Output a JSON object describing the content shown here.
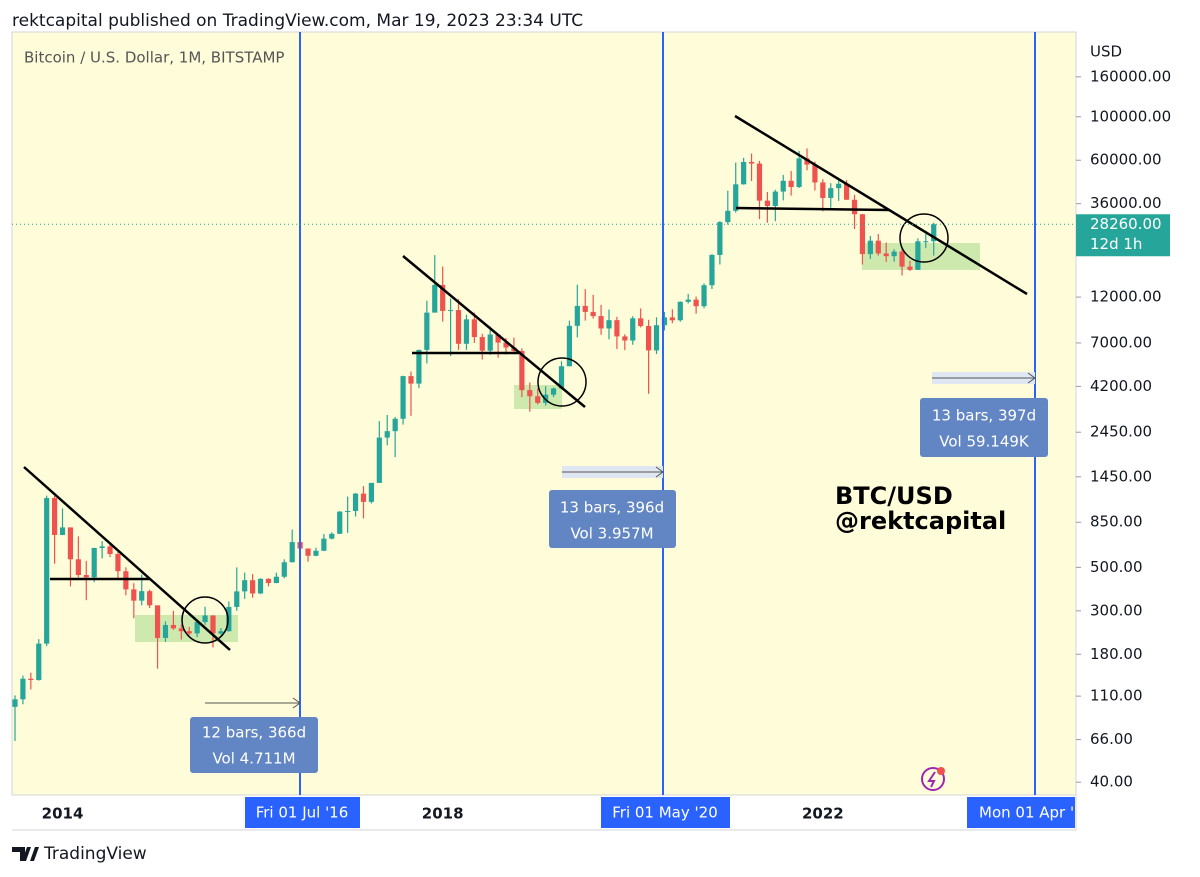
{
  "header": {
    "title": "rektcapital published on TradingView.com, Mar 19, 2023 23:34 UTC"
  },
  "chart": {
    "type": "candlestick",
    "symbol": "Bitcoin / U.S. Dollar, 1M, BITSTAMP",
    "currency": "USD",
    "log_scale": true,
    "colors": {
      "up": "#26a69a",
      "down": "#ef5350"
    },
    "ylim": [
      34.4,
      271000
    ],
    "yticks": [
      {
        "value": 160000,
        "label": "160000.00"
      },
      {
        "value": 100000,
        "label": "100000.00"
      },
      {
        "value": 60000,
        "label": "60000.00"
      },
      {
        "value": 36000,
        "label": "36000.00"
      },
      {
        "value": 12000,
        "label": "12000.00"
      },
      {
        "value": 7000,
        "label": "7000.00"
      },
      {
        "value": 4200,
        "label": "4200.00"
      },
      {
        "value": 2450,
        "label": "2450.00"
      },
      {
        "value": 1450,
        "label": "1450.00"
      },
      {
        "value": 850,
        "label": "850.00"
      },
      {
        "value": 500,
        "label": "500.00"
      },
      {
        "value": 300,
        "label": "300.00"
      },
      {
        "value": 180,
        "label": "180.00"
      },
      {
        "value": 110,
        "label": "110.00"
      },
      {
        "value": 66,
        "label": "66.00"
      },
      {
        "value": 40,
        "label": "40.00"
      }
    ],
    "x_labels": [
      "2014",
      "2018",
      "2022"
    ],
    "last_price": {
      "value": 28260,
      "label": "28260.00",
      "countdown": "12d 1h"
    },
    "candles": [
      [
        97,
        111,
        65,
        106
      ],
      [
        106,
        140,
        100,
        135
      ],
      [
        135,
        145,
        119,
        133
      ],
      [
        133,
        215,
        132,
        204
      ],
      [
        204,
        1163,
        198,
        1130
      ],
      [
        1130,
        1160,
        522,
        732
      ],
      [
        732,
        1000,
        730,
        800
      ],
      [
        800,
        800,
        400,
        550
      ],
      [
        550,
        720,
        445,
        457
      ],
      [
        457,
        540,
        340,
        445
      ],
      [
        445,
        630,
        420,
        628
      ],
      [
        628,
        680,
        555,
        640
      ],
      [
        640,
        660,
        565,
        585
      ],
      [
        585,
        600,
        440,
        478
      ],
      [
        478,
        500,
        360,
        386
      ],
      [
        386,
        415,
        275,
        338
      ],
      [
        338,
        460,
        320,
        378
      ],
      [
        378,
        385,
        310,
        320
      ],
      [
        320,
        320,
        152,
        218
      ],
      [
        218,
        265,
        208,
        254
      ],
      [
        254,
        300,
        240,
        244
      ],
      [
        244,
        255,
        214,
        236
      ],
      [
        236,
        248,
        225,
        230
      ],
      [
        230,
        268,
        220,
        263
      ],
      [
        263,
        315,
        255,
        284
      ],
      [
        284,
        285,
        195,
        230
      ],
      [
        230,
        245,
        225,
        236
      ],
      [
        236,
        335,
        235,
        314
      ],
      [
        314,
        500,
        300,
        377
      ],
      [
        377,
        470,
        345,
        430
      ],
      [
        430,
        462,
        350,
        368
      ],
      [
        368,
        440,
        365,
        437
      ],
      [
        437,
        440,
        400,
        416
      ],
      [
        416,
        470,
        415,
        448
      ],
      [
        448,
        550,
        440,
        531
      ],
      [
        531,
        780,
        530,
        673
      ],
      [
        673,
        700,
        470,
        624
      ],
      [
        624,
        625,
        535,
        573
      ],
      [
        573,
        630,
        570,
        608
      ],
      [
        608,
        740,
        605,
        701
      ],
      [
        701,
        755,
        695,
        742
      ],
      [
        742,
        970,
        740,
        963
      ],
      [
        963,
        1150,
        750,
        970
      ],
      [
        970,
        1200,
        910,
        1190
      ],
      [
        1190,
        1300,
        890,
        1080
      ],
      [
        1080,
        1350,
        1060,
        1350
      ],
      [
        1350,
        2790,
        1350,
        2300
      ],
      [
        2300,
        3000,
        2100,
        2480
      ],
      [
        2480,
        2930,
        1830,
        2870
      ],
      [
        2870,
        4760,
        2680,
        4740
      ],
      [
        4740,
        5000,
        2970,
        4340
      ],
      [
        4340,
        6470,
        4110,
        6450
      ],
      [
        6450,
        11500,
        5500,
        10000
      ],
      [
        10000,
        19666,
        10000,
        13850
      ],
      [
        13850,
        17180,
        9000,
        10200
      ],
      [
        10200,
        11800,
        6000,
        10300
      ],
      [
        10300,
        11700,
        6450,
        6930
      ],
      [
        6930,
        9760,
        6450,
        9240
      ],
      [
        9240,
        10000,
        7000,
        7500
      ],
      [
        7500,
        7790,
        5760,
        6390
      ],
      [
        6390,
        8500,
        6080,
        7730
      ],
      [
        7730,
        7760,
        5880,
        7030
      ],
      [
        7030,
        7410,
        6100,
        6630
      ],
      [
        6630,
        7450,
        6200,
        6370
      ],
      [
        6370,
        6570,
        3700,
        4020
      ],
      [
        4020,
        4400,
        3120,
        3740
      ],
      [
        3740,
        4100,
        3400,
        3460
      ],
      [
        3460,
        4210,
        3350,
        3810
      ],
      [
        3810,
        4150,
        3700,
        4100
      ],
      [
        4100,
        5640,
        4060,
        5320
      ],
      [
        5320,
        9100,
        5320,
        8560
      ],
      [
        8560,
        13880,
        7480,
        10820
      ],
      [
        10820,
        13180,
        9100,
        10080
      ],
      [
        10080,
        12330,
        9320,
        9600
      ],
      [
        9600,
        10950,
        7710,
        8300
      ],
      [
        8300,
        10370,
        7300,
        9150
      ],
      [
        9150,
        9520,
        6520,
        7560
      ],
      [
        7560,
        7750,
        6430,
        7200
      ],
      [
        7200,
        9580,
        6850,
        9350
      ],
      [
        9350,
        10500,
        8400,
        8540
      ],
      [
        8540,
        9190,
        3850,
        6410
      ],
      [
        6410,
        9460,
        6150,
        8620
      ],
      [
        8620,
        10080,
        8100,
        9450
      ],
      [
        9450,
        10400,
        8830,
        9140
      ],
      [
        9140,
        11430,
        8980,
        11350
      ],
      [
        11350,
        12470,
        11130,
        11650
      ],
      [
        11650,
        12070,
        9880,
        10780
      ],
      [
        10780,
        14100,
        10520,
        13800
      ],
      [
        13800,
        19900,
        13200,
        19700
      ],
      [
        19700,
        29300,
        17600,
        28990
      ],
      [
        28990,
        41950,
        28130,
        33100
      ],
      [
        33100,
        58350,
        32400,
        45200
      ],
      [
        45200,
        61780,
        45000,
        58800
      ],
      [
        58800,
        64900,
        47000,
        57700
      ],
      [
        57700,
        59600,
        30000,
        37300
      ],
      [
        37300,
        41330,
        28800,
        35040
      ],
      [
        35040,
        42400,
        29300,
        41500
      ],
      [
        41500,
        50500,
        37400,
        47100
      ],
      [
        47100,
        52900,
        39600,
        43800
      ],
      [
        43800,
        67000,
        43300,
        61300
      ],
      [
        61300,
        69000,
        53300,
        57000
      ],
      [
        57000,
        59100,
        42000,
        46200
      ],
      [
        46200,
        47990,
        32900,
        38500
      ],
      [
        38500,
        45800,
        34300,
        43200
      ],
      [
        43200,
        48200,
        37200,
        45500
      ],
      [
        45500,
        47450,
        37600,
        37700
      ],
      [
        37700,
        40000,
        26700,
        31800
      ],
      [
        31800,
        31900,
        17600,
        19900
      ],
      [
        19900,
        24660,
        18800,
        23300
      ],
      [
        23300,
        25200,
        19550,
        20050
      ],
      [
        20050,
        22800,
        18150,
        19420
      ],
      [
        19420,
        21080,
        18200,
        20490
      ],
      [
        20490,
        21450,
        15480,
        17170
      ],
      [
        17170,
        18400,
        16300,
        16540
      ],
      [
        16540,
        23960,
        16500,
        23130
      ],
      [
        23130,
        25250,
        21350,
        23150
      ],
      [
        23150,
        28800,
        19560,
        28260
      ]
    ],
    "date_markers": [
      "Fri 01 Jul '16",
      "Fri 01 May '20",
      "Mon 01 Apr '"
    ],
    "measures": [
      {
        "bars": "12 bars, 366d",
        "vol": "Vol 4.711M"
      },
      {
        "bars": "13 bars, 396d",
        "vol": "Vol 3.957M"
      },
      {
        "bars": "13 bars, 397d",
        "vol": "Vol 59.149K"
      }
    ],
    "annotation": [
      "BTC/USD",
      "@rektcapital"
    ]
  },
  "footer": {
    "brand": "TradingView"
  }
}
